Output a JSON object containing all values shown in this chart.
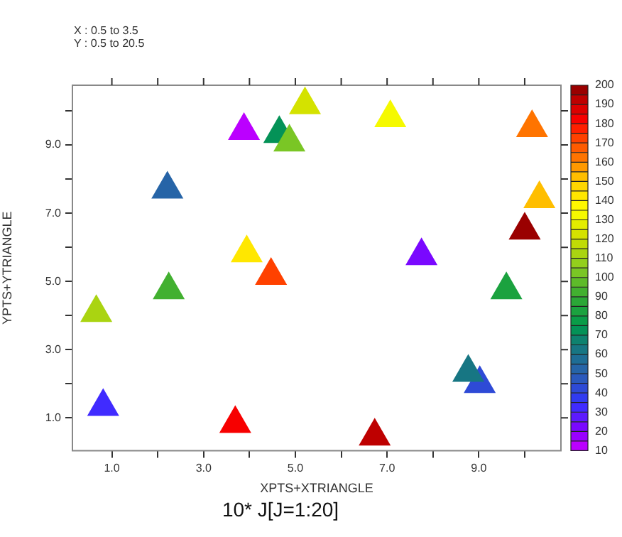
{
  "chart_data": {
    "type": "scatter",
    "title": "10* J[J=1:20]",
    "xlabel": "XPTS+XTRIANGLE",
    "ylabel": "YPTS+YTRIANGLE",
    "annotations": [
      "X : 0.5 to 3.5",
      "Y : 0.5 to 20.5"
    ],
    "marker": "triangle",
    "grid": false,
    "legend": false,
    "xlim": [
      0.14,
      10.79
    ],
    "ylim": [
      0.04,
      10.75
    ],
    "xticks": [
      {
        "value": 1,
        "label": "1.0"
      },
      {
        "value": 2,
        "label": null
      },
      {
        "value": 3,
        "label": "3.0"
      },
      {
        "value": 4,
        "label": null
      },
      {
        "value": 5,
        "label": "5.0"
      },
      {
        "value": 6,
        "label": null
      },
      {
        "value": 7,
        "label": "7.0"
      },
      {
        "value": 8,
        "label": null
      },
      {
        "value": 9,
        "label": "9.0"
      },
      {
        "value": 10,
        "label": null
      }
    ],
    "yticks": [
      {
        "value": 1,
        "label": "1.0"
      },
      {
        "value": 2,
        "label": null
      },
      {
        "value": 3,
        "label": "3.0"
      },
      {
        "value": 4,
        "label": null
      },
      {
        "value": 5,
        "label": "5.0"
      },
      {
        "value": 6,
        "label": null
      },
      {
        "value": 7,
        "label": "7.0"
      },
      {
        "value": 8,
        "label": null
      },
      {
        "value": 9,
        "label": "9.0"
      },
      {
        "value": 10,
        "label": null
      }
    ],
    "clim": [
      10,
      200
    ],
    "cticks": [
      10,
      20,
      30,
      40,
      50,
      60,
      70,
      80,
      90,
      100,
      110,
      120,
      130,
      140,
      150,
      160,
      170,
      180,
      190,
      200
    ],
    "x": [
      3.88,
      7.75,
      0.81,
      9.02,
      2.21,
      8.77,
      4.65,
      9.6,
      2.24,
      4.87,
      0.66,
      5.21,
      7.07,
      3.94,
      10.32,
      10.16,
      4.47,
      3.69,
      6.73,
      10.0
    ],
    "values": [
      9.42,
      5.75,
      1.33,
      2.0,
      7.7,
      2.33,
      9.33,
      4.75,
      4.75,
      9.08,
      4.08,
      10.17,
      9.79,
      5.83,
      7.42,
      9.5,
      5.17,
      0.83,
      0.46,
      6.5
    ],
    "cvalues": [
      10,
      20,
      30,
      40,
      50,
      60,
      70,
      80,
      90,
      100,
      110,
      120,
      130,
      140,
      150,
      160,
      170,
      180,
      190,
      200
    ]
  }
}
